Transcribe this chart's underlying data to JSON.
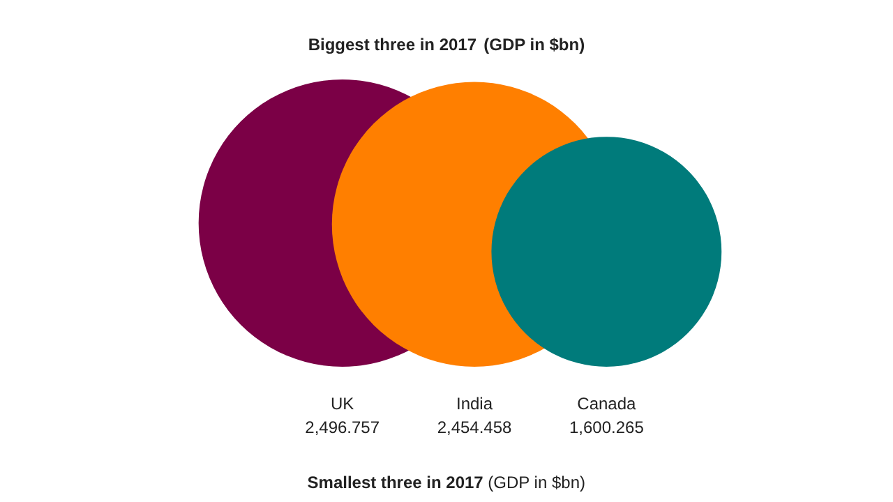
{
  "chart_data": {
    "type": "other",
    "title": "Biggest three in 2017",
    "subtitle": "(GDP in $bn)",
    "categories": [
      "UK",
      "India",
      "Canada"
    ],
    "values": [
      2496.757,
      2454.458,
      1600.265
    ],
    "value_labels": [
      "2,496.757",
      "2,454.458",
      "1,600.265"
    ],
    "colors": [
      "#7b0046",
      "#ff7f00",
      "#007b7b"
    ],
    "annotations": [
      "Smallest three in 2017",
      "(GDP in $bn)"
    ]
  }
}
